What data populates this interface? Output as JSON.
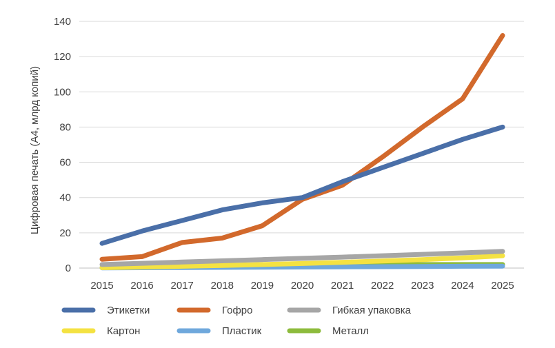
{
  "chart_data": {
    "type": "line",
    "title": "",
    "xlabel": "",
    "ylabel": "Цифровая печать (А4, млрд копий)",
    "x": [
      "2015",
      "2016",
      "2017",
      "2018",
      "2019",
      "2020",
      "2021",
      "2022",
      "2023",
      "2024",
      "2025"
    ],
    "ylim": [
      0,
      140
    ],
    "yticks": [
      0,
      20,
      40,
      60,
      80,
      100,
      120,
      140
    ],
    "grid": true,
    "legend_position": "bottom",
    "series": [
      {
        "name": "Этикетки",
        "color": "#4a6fa8",
        "values": [
          14,
          21,
          27,
          33,
          37,
          40,
          49,
          57,
          65,
          73,
          80
        ]
      },
      {
        "name": "Гофро",
        "color": "#d2692c",
        "values": [
          5,
          6.5,
          14.5,
          17,
          24,
          39,
          47,
          63,
          80,
          96,
          132
        ]
      },
      {
        "name": "Гибкая упаковка",
        "color": "#a6a6a6",
        "values": [
          2,
          2.7,
          3.4,
          4.1,
          4.8,
          5.5,
          6.2,
          7,
          7.8,
          8.6,
          9.5
        ]
      },
      {
        "name": "Картон",
        "color": "#f4e242",
        "values": [
          0.2,
          0.6,
          1,
          1.5,
          2,
          2.6,
          3.3,
          4,
          4.8,
          5.8,
          7
        ]
      },
      {
        "name": "Пластик",
        "color": "#6fa8dc",
        "values": [
          0.1,
          0.2,
          0.3,
          0.4,
          0.5,
          0.6,
          0.7,
          0.8,
          0.9,
          1,
          1.1
        ]
      },
      {
        "name": "Металл",
        "color": "#8dbb3c",
        "values": [
          0.3,
          0.5,
          0.8,
          1,
          1.2,
          1.5,
          1.7,
          1.9,
          2,
          2,
          2
        ]
      }
    ]
  }
}
